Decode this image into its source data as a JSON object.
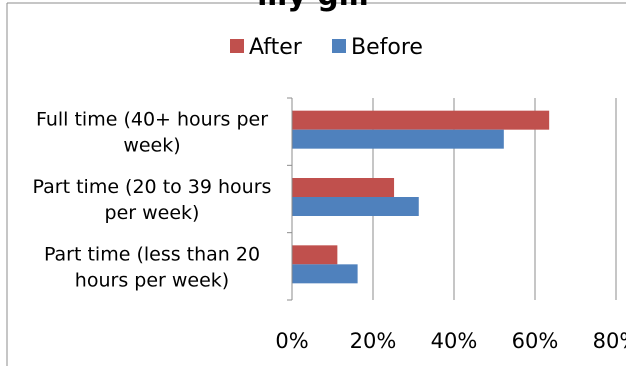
{
  "chart_data": {
    "type": "bar",
    "orientation": "horizontal",
    "title": "…y                g…",
    "categories": [
      [
        "Full time (40+ hours per",
        "week)"
      ],
      [
        "Part time (20 to 39 hours",
        "per week)"
      ],
      [
        "Part time (less than 20",
        "hours per week)"
      ]
    ],
    "series": [
      {
        "name": "After",
        "color": "#c0504d",
        "values": [
          63.5,
          25.2,
          11.2
        ]
      },
      {
        "name": "Before",
        "color": "#4f81bd",
        "values": [
          52.3,
          31.3,
          16.2
        ]
      }
    ],
    "xlim": [
      0,
      80
    ],
    "xticks": [
      0,
      20,
      40,
      60,
      80
    ],
    "tick_format": "{v}%",
    "grid": true,
    "legend_position": "top-center"
  }
}
